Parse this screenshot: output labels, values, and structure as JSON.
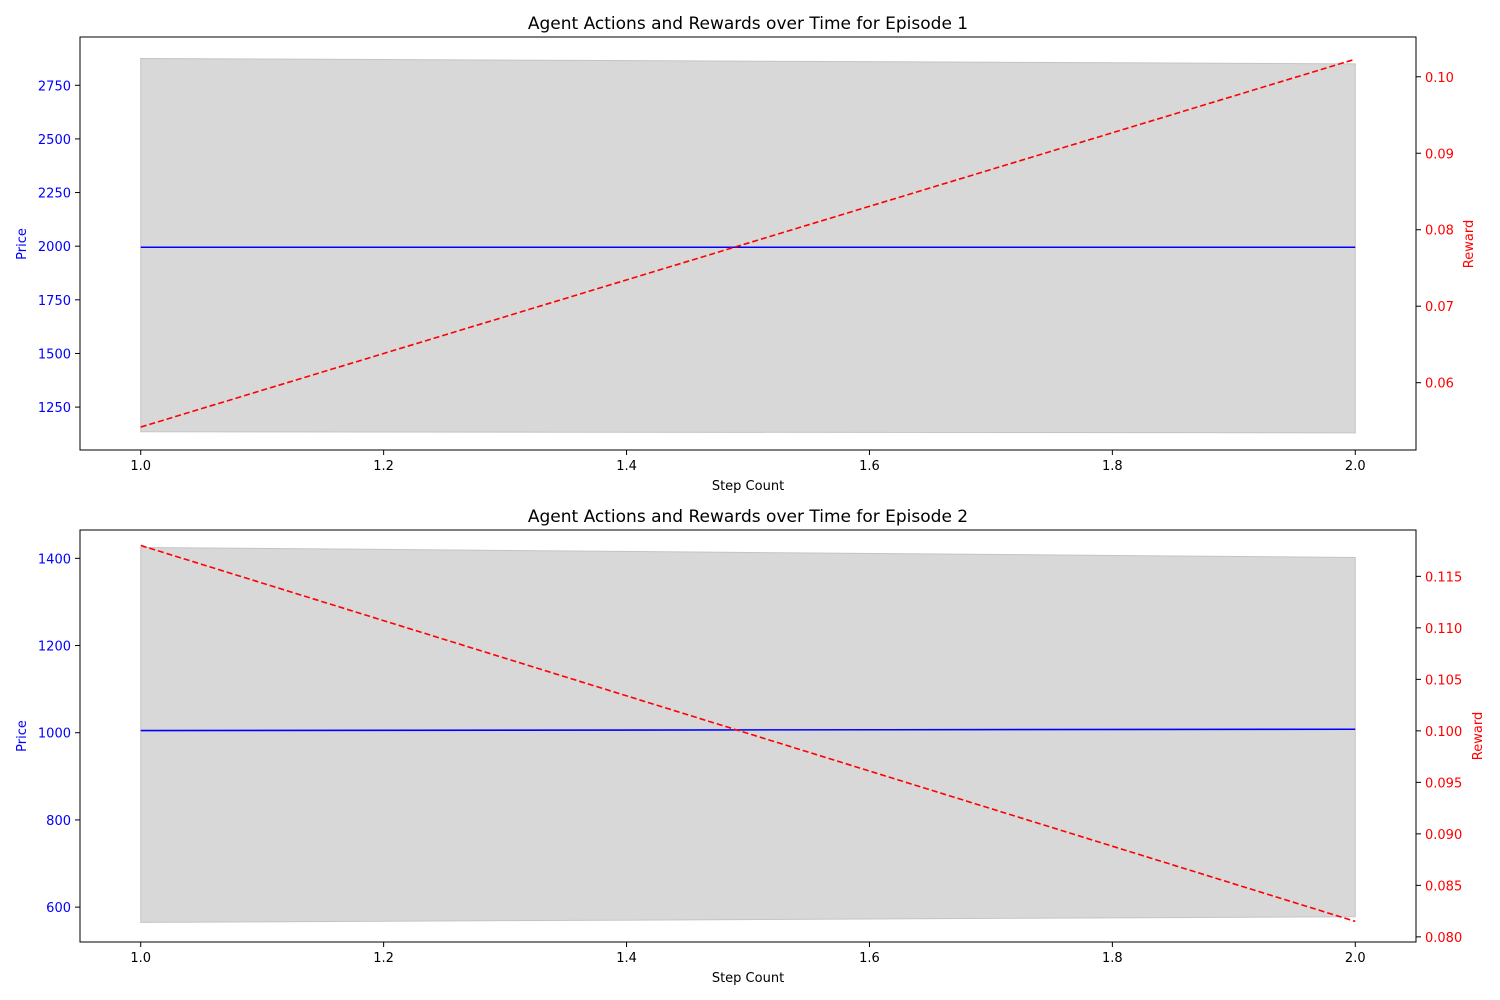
{
  "colors": {
    "price": "#0000ff",
    "reward": "#ff0000",
    "band": "#d8d8d8",
    "band_edge": "#c4c4c4",
    "axes": "#000000",
    "text": "#000000"
  },
  "chart_data": [
    {
      "type": "line",
      "title": "Agent Actions and Rewards over Time for Episode 1",
      "xlabel": "Step Count",
      "ylabel": "Price",
      "ylabel_right": "Reward",
      "xlim": [
        0.95,
        2.05
      ],
      "ylim": [
        1050,
        2975
      ],
      "ylim_right": [
        0.0512,
        0.1052
      ],
      "xticks": [
        "1.0",
        "1.2",
        "1.4",
        "1.6",
        "1.8",
        "2.0"
      ],
      "yticks": [
        "1250",
        "1500",
        "1750",
        "2000",
        "2250",
        "2500",
        "2750"
      ],
      "yticks_right": [
        "0.06",
        "0.07",
        "0.08",
        "0.09",
        "0.10"
      ],
      "grid": false,
      "x": [
        1.0,
        2.0
      ],
      "series": [
        {
          "axis": "left",
          "style": "solid",
          "color": "blue",
          "values": [
            1995,
            1995
          ]
        },
        {
          "axis": "left",
          "style": "band",
          "color": "lightgray",
          "lower": [
            1135,
            1130
          ],
          "upper": [
            2875,
            2850
          ]
        },
        {
          "axis": "right",
          "style": "dashed",
          "color": "red",
          "values": [
            0.0542,
            0.1023
          ]
        }
      ]
    },
    {
      "type": "line",
      "title": "Agent Actions and Rewards over Time for Episode 2",
      "xlabel": "Step Count",
      "ylabel": "Price",
      "ylabel_right": "Reward",
      "xlim": [
        0.95,
        2.05
      ],
      "ylim": [
        520,
        1465
      ],
      "ylim_right": [
        0.0795,
        0.1195
      ],
      "xticks": [
        "1.0",
        "1.2",
        "1.4",
        "1.6",
        "1.8",
        "2.0"
      ],
      "yticks": [
        "600",
        "800",
        "1000",
        "1200",
        "1400"
      ],
      "yticks_right": [
        "0.080",
        "0.085",
        "0.090",
        "0.095",
        "0.100",
        "0.105",
        "0.110",
        "0.115"
      ],
      "grid": false,
      "x": [
        1.0,
        2.0
      ],
      "series": [
        {
          "axis": "left",
          "style": "solid",
          "color": "blue",
          "values": [
            1005,
            1008
          ]
        },
        {
          "axis": "left",
          "style": "band",
          "color": "lightgray",
          "lower": [
            565,
            578
          ],
          "upper": [
            1425,
            1402
          ]
        },
        {
          "axis": "right",
          "style": "dashed",
          "color": "red",
          "values": [
            0.118,
            0.0815
          ]
        }
      ]
    }
  ]
}
